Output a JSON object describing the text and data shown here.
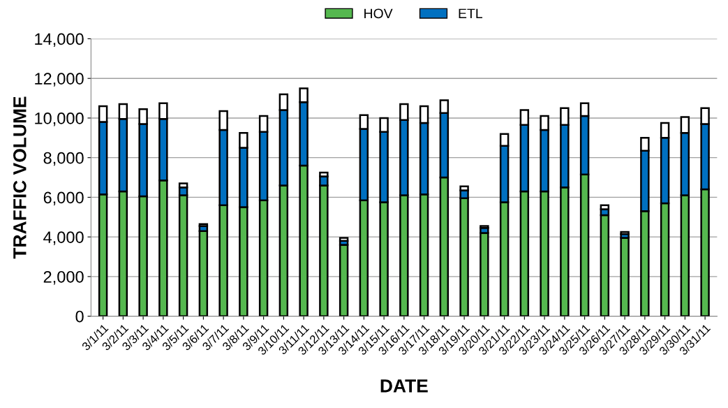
{
  "chart_data": {
    "type": "bar",
    "stacked": true,
    "xlabel": "DATE",
    "ylabel": "TRAFFIC VOLUME",
    "categories": [
      "3/1/11",
      "3/2/11",
      "3/3/11",
      "3/4/11",
      "3/5/11",
      "3/6/11",
      "3/7/11",
      "3/8/11",
      "3/9/11",
      "3/10/11",
      "3/11/11",
      "3/12/11",
      "3/13/11",
      "3/14/11",
      "3/15/11",
      "3/16/11",
      "3/17/11",
      "3/18/11",
      "3/19/11",
      "3/20/11",
      "3/21/11",
      "3/22/11",
      "3/23/11",
      "3/24/11",
      "3/25/11",
      "3/26/11",
      "3/27/11",
      "3/28/11",
      "3/29/11",
      "3/30/11",
      "3/31/11"
    ],
    "series": [
      {
        "name": "HOV",
        "color": "#55b84f",
        "values": [
          6150,
          6300,
          6050,
          6850,
          6100,
          4300,
          5600,
          5500,
          5850,
          6600,
          7600,
          6600,
          3600,
          5850,
          5750,
          6100,
          6150,
          7000,
          5950,
          4200,
          5750,
          6300,
          6300,
          6500,
          7150,
          5100,
          3950,
          5300,
          5700,
          6100,
          6400
        ]
      },
      {
        "name": "ETL",
        "color": "#0070c0",
        "values": [
          3650,
          3650,
          3650,
          3100,
          400,
          250,
          3800,
          3000,
          3450,
          3800,
          3200,
          450,
          200,
          3600,
          3550,
          3800,
          3600,
          3250,
          400,
          250,
          2850,
          3350,
          3100,
          3150,
          2950,
          300,
          200,
          3050,
          3300,
          3150,
          3300
        ]
      },
      {
        "color": "#ffffff",
        "values": [
          800,
          750,
          750,
          800,
          200,
          100,
          950,
          750,
          800,
          800,
          700,
          200,
          150,
          700,
          700,
          800,
          850,
          650,
          200,
          100,
          600,
          750,
          700,
          850,
          650,
          200,
          100,
          650,
          750,
          800,
          800
        ]
      }
    ],
    "ylim": [
      0,
      14000
    ],
    "yticks": [
      {
        "value": 0,
        "label": "0"
      },
      {
        "value": 2000,
        "label": "2,000"
      },
      {
        "value": 4000,
        "label": "4,000"
      },
      {
        "value": 6000,
        "label": "6,000"
      },
      {
        "value": 8000,
        "label": "8,000"
      },
      {
        "value": 10000,
        "label": "10,000"
      },
      {
        "value": 12000,
        "label": "12,000"
      },
      {
        "value": 14000,
        "label": "14,000"
      }
    ],
    "grid": "y",
    "legend": "top"
  }
}
